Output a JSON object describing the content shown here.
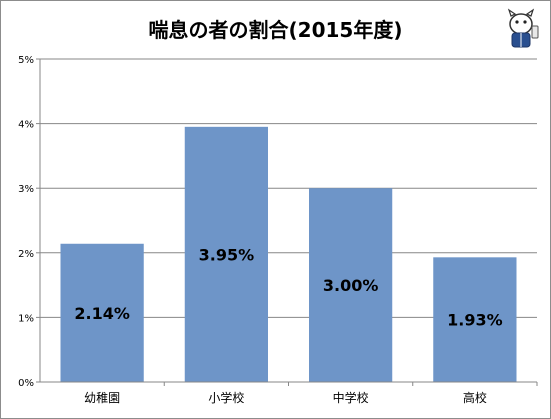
{
  "chart_data": {
    "type": "bar",
    "title": "喘息の者の割合(2015年度)",
    "categories": [
      "幼稚園",
      "小学校",
      "中学校",
      "高校"
    ],
    "values": [
      2.14,
      3.95,
      3.0,
      1.93
    ],
    "data_labels": [
      "2.14%",
      "3.95%",
      "3.00%",
      "1.93%"
    ],
    "ylim": [
      0,
      5
    ],
    "yticks": [
      0,
      1,
      2,
      3,
      4,
      5
    ],
    "ytick_labels": [
      "0%",
      "1%",
      "2%",
      "3%",
      "4%",
      "5%"
    ],
    "xlabel": "",
    "ylabel": "",
    "grid": true,
    "legend": "none",
    "bar_color": "#6e95c8"
  },
  "mascot": {
    "icon": "mascot-character-icon"
  }
}
